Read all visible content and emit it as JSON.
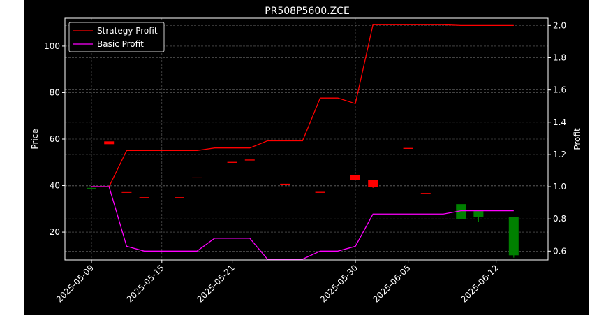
{
  "chart_data": {
    "type": "line",
    "title": "PR508P5600.ZCE",
    "xlabel": "",
    "ylabel": "Price",
    "y2label": "Profit",
    "x": [
      "2025-05-09",
      "2025-05-12",
      "2025-05-13",
      "2025-05-14",
      "2025-05-15",
      "2025-05-16",
      "2025-05-19",
      "2025-05-20",
      "2025-05-21",
      "2025-05-22",
      "2025-05-23",
      "2025-05-26",
      "2025-05-27",
      "2025-05-28",
      "2025-05-29",
      "2025-05-30",
      "2025-06-03",
      "2025-06-04",
      "2025-06-05",
      "2025-06-06",
      "2025-06-09",
      "2025-06-10",
      "2025-06-11",
      "2025-06-12",
      "2025-06-13"
    ],
    "xticks": [
      "2025-05-09",
      "2025-05-15",
      "2025-05-21",
      "2025-05-30",
      "2025-06-05",
      "2025-06-12"
    ],
    "ylim": [
      8,
      112
    ],
    "y2lim": [
      0.545,
      2.045
    ],
    "yticks": [
      20,
      40,
      60,
      80,
      100
    ],
    "y2ticks": [
      0.6,
      0.8,
      1.0,
      1.2,
      1.4,
      1.6,
      1.8,
      2.0
    ],
    "grid": true,
    "legend_position": "top-left",
    "colors": {
      "up": "#008000",
      "down": "#ff0000",
      "strategy": "#ff0000",
      "basic": "#ff00ff",
      "background": "#000000",
      "axes": "#ffffff",
      "grid": "#b0b0b0"
    },
    "candles": [
      {
        "x": "2025-05-09",
        "open": 39.0,
        "close": 39.0,
        "high": 39.0,
        "low": 39.0
      },
      {
        "x": "2025-05-12",
        "open": 59.0,
        "close": 57.8,
        "high": 59.0,
        "low": 57.8
      },
      {
        "x": "2025-05-13",
        "open": 37.2,
        "close": 36.9,
        "high": 37.2,
        "low": 36.9
      },
      {
        "x": "2025-05-14",
        "open": 35.0,
        "close": 34.7,
        "high": 35.0,
        "low": 34.7
      },
      {
        "x": "2025-05-16",
        "open": 35.0,
        "close": 34.7,
        "high": 35.0,
        "low": 34.7
      },
      {
        "x": "2025-05-19",
        "open": 43.5,
        "close": 43.2,
        "high": 43.5,
        "low": 43.2
      },
      {
        "x": "2025-05-21",
        "open": 50.2,
        "close": 49.8,
        "high": 50.2,
        "low": 49.8
      },
      {
        "x": "2025-05-22",
        "open": 51.2,
        "close": 50.8,
        "high": 51.2,
        "low": 50.8
      },
      {
        "x": "2025-05-26",
        "open": 40.8,
        "close": 40.4,
        "high": 40.8,
        "low": 40.4
      },
      {
        "x": "2025-05-28",
        "open": 37.3,
        "close": 36.9,
        "high": 37.3,
        "low": 36.9
      },
      {
        "x": "2025-05-30",
        "open": 44.5,
        "close": 42.5,
        "high": 44.5,
        "low": 42.5
      },
      {
        "x": "2025-06-03",
        "open": 42.5,
        "close": 39.5,
        "high": 42.5,
        "low": 39.0
      },
      {
        "x": "2025-06-05",
        "open": 56.2,
        "close": 55.8,
        "high": 56.2,
        "low": 55.8
      },
      {
        "x": "2025-06-06",
        "open": 36.8,
        "close": 36.4,
        "high": 36.8,
        "low": 36.4
      },
      {
        "x": "2025-06-10",
        "open": 25.5,
        "close": 32.0,
        "high": 32.0,
        "low": 25.5
      },
      {
        "x": "2025-06-11",
        "open": 26.5,
        "close": 29.0,
        "high": 29.0,
        "low": 24.5
      },
      {
        "x": "2025-06-13",
        "open": 10.0,
        "close": 26.5,
        "high": 26.5,
        "low": 9.0
      }
    ],
    "series": [
      {
        "name": "Strategy Profit",
        "axis": "right",
        "color": "#ff0000",
        "values": [
          1.0,
          1.0,
          1.224,
          1.224,
          1.224,
          1.224,
          1.224,
          1.24,
          1.24,
          1.24,
          1.284,
          1.284,
          1.284,
          1.55,
          1.55,
          1.515,
          2.005,
          2.005,
          2.005,
          2.005,
          2.005,
          2.0,
          2.0,
          2.0,
          2.0
        ]
      },
      {
        "name": "Basic Profit",
        "axis": "right",
        "color": "#ff00ff",
        "values": [
          1.0,
          1.0,
          0.63,
          0.6,
          0.6,
          0.6,
          0.6,
          0.68,
          0.68,
          0.68,
          0.55,
          0.55,
          0.55,
          0.6,
          0.6,
          0.63,
          0.83,
          0.83,
          0.83,
          0.83,
          0.83,
          0.85,
          0.85,
          0.85,
          0.85
        ]
      }
    ]
  }
}
